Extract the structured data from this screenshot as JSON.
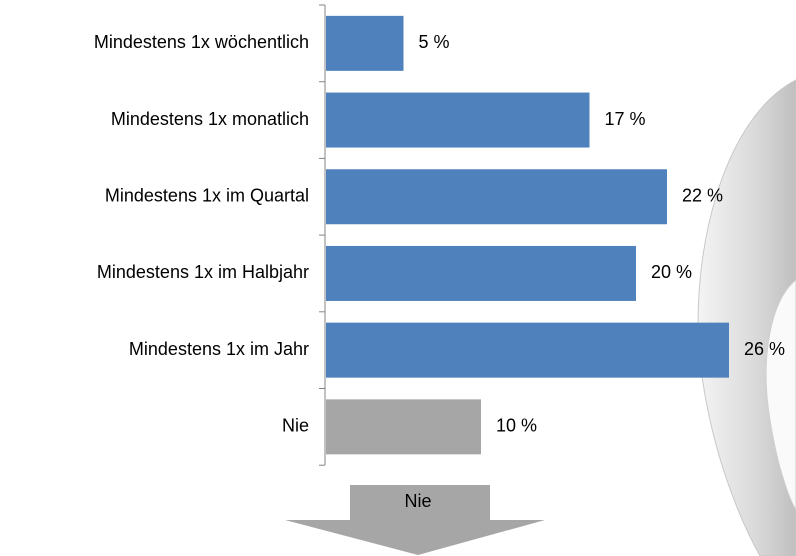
{
  "chart_data": {
    "type": "bar",
    "orientation": "horizontal",
    "categories": [
      "Mindestens 1x wöchentlich",
      "Mindestens 1x monatlich",
      "Mindestens 1x im Quartal",
      "Mindestens 1x im Halbjahr",
      "Mindestens 1x im Jahr",
      "Nie"
    ],
    "values": [
      5,
      17,
      22,
      20,
      26,
      10
    ],
    "value_labels": [
      "5 %",
      "17 %",
      "22 %",
      "20 %",
      "26 %",
      "10 %"
    ],
    "colors": [
      "#4f81bd",
      "#4f81bd",
      "#4f81bd",
      "#4f81bd",
      "#4f81bd",
      "#a6a6a6"
    ],
    "annotation": "Nie"
  }
}
